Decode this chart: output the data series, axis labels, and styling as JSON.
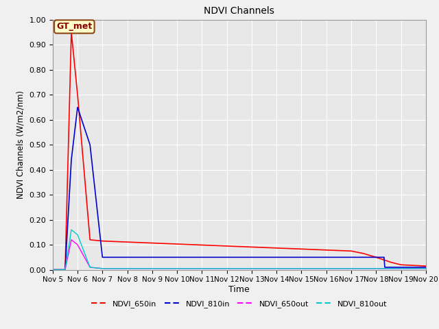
{
  "title": "NDVI Channels",
  "xlabel": "Time",
  "ylabel": "NDVI Channels (W/m2/nm)",
  "ylim": [
    0.0,
    1.0
  ],
  "background_color": "#f0f0f0",
  "plot_bg_color": "#e8e8e8",
  "annotation_text": "GT_met",
  "annotation_bg": "#ffffcc",
  "annotation_border": "#8B4513",
  "series": {
    "NDVI_650in": {
      "color": "#ff0000",
      "linewidth": 1.2,
      "x": [
        0,
        0.5,
        0.75,
        1.0,
        1.5,
        2.0,
        3.0,
        4.0,
        5.0,
        6.0,
        7.0,
        8.0,
        9.0,
        10.0,
        11.0,
        12.0,
        12.5,
        13.0,
        13.3,
        13.6,
        14.0,
        15.0
      ],
      "y": [
        0.0,
        0.0,
        0.95,
        0.7,
        0.12,
        0.115,
        0.111,
        0.107,
        0.103,
        0.099,
        0.095,
        0.091,
        0.087,
        0.083,
        0.079,
        0.075,
        0.065,
        0.05,
        0.04,
        0.03,
        0.02,
        0.015
      ]
    },
    "NDVI_810in": {
      "color": "#0000cc",
      "linewidth": 1.2,
      "x": [
        0,
        0.5,
        0.75,
        1.0,
        1.5,
        2.0,
        3.0,
        4.0,
        5.0,
        6.0,
        7.0,
        8.0,
        9.0,
        10.0,
        11.0,
        12.0,
        12.5,
        13.0,
        13.3,
        13.32,
        13.35,
        15.0
      ],
      "y": [
        0.0,
        0.0,
        0.44,
        0.65,
        0.5,
        0.05,
        0.05,
        0.05,
        0.05,
        0.05,
        0.05,
        0.05,
        0.05,
        0.05,
        0.05,
        0.05,
        0.05,
        0.05,
        0.05,
        0.05,
        0.01,
        0.01
      ]
    },
    "NDVI_650out": {
      "color": "#ff00ff",
      "linewidth": 1.0,
      "x": [
        0,
        0.5,
        0.75,
        1.0,
        1.5,
        2.0,
        3.0,
        4.0,
        15.0
      ],
      "y": [
        0.0,
        0.0,
        0.12,
        0.1,
        0.01,
        0.005,
        0.005,
        0.005,
        0.005
      ]
    },
    "NDVI_810out": {
      "color": "#00cccc",
      "linewidth": 1.0,
      "x": [
        0,
        0.5,
        0.75,
        1.0,
        1.5,
        2.0,
        3.0,
        4.0,
        15.0
      ],
      "y": [
        0.0,
        0.0,
        0.16,
        0.14,
        0.01,
        0.005,
        0.005,
        0.005,
        0.005
      ]
    }
  },
  "x_tick_positions": [
    0,
    1,
    2,
    3,
    4,
    5,
    6,
    7,
    8,
    9,
    10,
    11,
    12,
    13,
    14,
    15
  ],
  "x_tick_labels": [
    "Nov 5",
    "Nov 6",
    "Nov 7",
    "Nov 8",
    "Nov 9",
    "Nov 10",
    "Nov 11",
    "Nov 12",
    "Nov 13",
    "Nov 14",
    "Nov 15",
    "Nov 16",
    "Nov 17",
    "Nov 18",
    "Nov 19",
    "Nov 20"
  ],
  "yticks": [
    0.0,
    0.1,
    0.2,
    0.3,
    0.4,
    0.5,
    0.6,
    0.7,
    0.8,
    0.9,
    1.0
  ]
}
